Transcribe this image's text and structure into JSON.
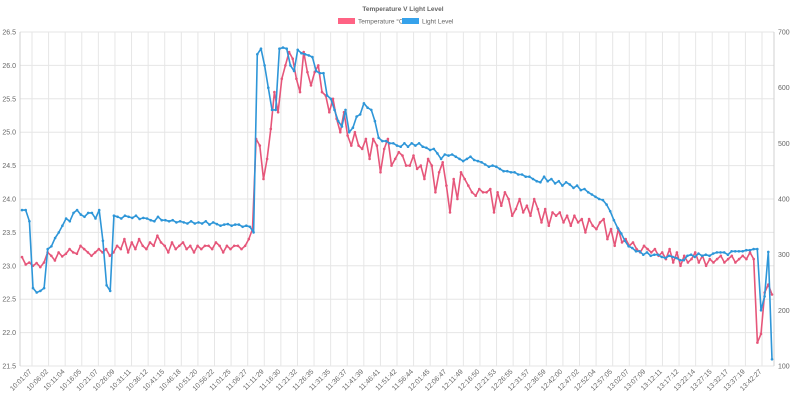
{
  "chart_data": {
    "type": "line",
    "title": "Temperature V Light Level",
    "legend_position": "top",
    "grid": true,
    "left_axis": {
      "ylim": [
        21.5,
        26.5
      ],
      "ticks": [
        "21.5",
        "22.0",
        "22.5",
        "23.0",
        "23.5",
        "24.0",
        "24.5",
        "25.0",
        "25.5",
        "26.0",
        "26.5"
      ]
    },
    "right_axis": {
      "ylim": [
        100,
        700
      ],
      "ticks": [
        "100",
        "200",
        "300",
        "400",
        "500",
        "600",
        "700"
      ]
    },
    "x_tick_labels": [
      "10:01:07",
      "10:06:02",
      "10:11:04",
      "10:16:05",
      "10:21:07",
      "10:26:09",
      "10:31:11",
      "10:36:12",
      "10:41:15",
      "10:46:18",
      "10:51:20",
      "10:56:22",
      "11:01:25",
      "11:06:27",
      "11:11:29",
      "11:16:30",
      "11:21:32",
      "11:26:35",
      "11:31:35",
      "11:36:37",
      "11:41:39",
      "11:46:41",
      "11:51:42",
      "11:56:44",
      "12:01:45",
      "12:06:47",
      "12:11:49",
      "12:16:50",
      "12:21:53",
      "12:26:55",
      "12:31:57",
      "12:36:59",
      "12:42:00",
      "12:47:02",
      "12:52:04",
      "12:57:05",
      "13:02:07",
      "13:07:09",
      "13:12:11",
      "13:17:12",
      "13:22:14",
      "13:27:15",
      "13:32:17",
      "13:37:19",
      "13:42:27"
    ],
    "series": [
      {
        "name": "Temperature °C",
        "axis": "left",
        "color": "#ff6384",
        "stroke": "#e6567a",
        "values": [
          23.13,
          23.02,
          23.05,
          23.0,
          23.04,
          22.98,
          23.05,
          23.2,
          23.15,
          23.08,
          23.2,
          23.14,
          23.18,
          23.25,
          23.2,
          23.18,
          23.3,
          23.25,
          23.2,
          23.15,
          23.2,
          23.25,
          23.2,
          23.25,
          23.15,
          23.2,
          23.3,
          23.25,
          23.4,
          23.2,
          23.35,
          23.25,
          23.4,
          23.3,
          23.25,
          23.35,
          23.3,
          23.45,
          23.35,
          23.3,
          23.2,
          23.35,
          23.25,
          23.3,
          23.35,
          23.25,
          23.3,
          23.2,
          23.3,
          23.25,
          23.3,
          23.3,
          23.25,
          23.35,
          23.3,
          23.2,
          23.3,
          23.25,
          23.3,
          23.3,
          23.25,
          23.3,
          23.4,
          23.55,
          24.9,
          24.8,
          24.3,
          24.6,
          25.05,
          25.6,
          25.3,
          25.8,
          26.0,
          26.2,
          26.1,
          25.8,
          25.6,
          26.2,
          25.9,
          25.7,
          25.9,
          26.0,
          25.6,
          25.55,
          25.3,
          25.5,
          25.2,
          25.0,
          25.3,
          24.95,
          24.8,
          25.0,
          24.8,
          24.75,
          24.9,
          24.6,
          24.9,
          24.8,
          24.4,
          24.75,
          24.9,
          24.5,
          24.6,
          24.7,
          24.65,
          24.5,
          24.5,
          24.65,
          24.45,
          24.5,
          24.3,
          24.6,
          24.5,
          24.1,
          24.4,
          24.55,
          24.2,
          23.8,
          24.3,
          24.0,
          24.4,
          24.3,
          24.2,
          24.1,
          24.05,
          24.15,
          24.1,
          24.1,
          24.15,
          23.8,
          24.1,
          23.9,
          24.1,
          24.0,
          23.75,
          23.85,
          24.0,
          23.8,
          23.9,
          23.75,
          24.0,
          23.85,
          23.65,
          23.85,
          23.6,
          23.8,
          23.75,
          23.8,
          23.65,
          23.75,
          23.6,
          23.75,
          23.65,
          23.7,
          23.5,
          23.7,
          23.6,
          23.55,
          23.65,
          23.7,
          23.4,
          23.55,
          23.3,
          23.55,
          23.35,
          23.4,
          23.3,
          23.35,
          23.25,
          23.2,
          23.3,
          23.25,
          23.2,
          23.25,
          23.15,
          23.2,
          23.1,
          23.25,
          23.05,
          23.2,
          23.0,
          23.15,
          23.05,
          23.1,
          23.2,
          23.05,
          23.15,
          23.0,
          23.1,
          23.05,
          23.1,
          23.15,
          23.05,
          23.1,
          23.15,
          23.05,
          23.1,
          23.15,
          23.1,
          23.2,
          23.1,
          21.85,
          21.98,
          22.6,
          22.72,
          22.57
        ]
      },
      {
        "name": "Light Level",
        "axis": "right",
        "color": "#36a2eb",
        "stroke": "#2e96d8",
        "values": [
          380,
          380,
          360,
          240,
          232,
          235,
          240,
          310,
          315,
          330,
          340,
          352,
          365,
          360,
          375,
          380,
          372,
          368,
          375,
          375,
          365,
          380,
          325,
          245,
          235,
          370,
          368,
          365,
          370,
          368,
          366,
          370,
          364,
          366,
          365,
          362,
          360,
          368,
          362,
          362,
          360,
          362,
          358,
          360,
          358,
          356,
          360,
          356,
          358,
          356,
          360,
          354,
          358,
          355,
          352,
          354,
          355,
          352,
          354,
          354,
          350,
          352,
          350,
          340,
          660,
          670,
          640,
          600,
          560,
          560,
          670,
          672,
          670,
          640,
          630,
          668,
          662,
          660,
          658,
          655,
          630,
          626,
          626,
          586,
          580,
          560,
          540,
          530,
          560,
          520,
          528,
          548,
          552,
          572,
          564,
          560,
          540,
          510,
          504,
          504,
          500,
          500,
          496,
          494,
          500,
          494,
          500,
          496,
          500,
          494,
          492,
          488,
          490,
          482,
          472,
          480,
          478,
          480,
          476,
          472,
          468,
          472,
          476,
          470,
          468,
          466,
          462,
          458,
          460,
          458,
          454,
          450,
          450,
          448,
          448,
          444,
          444,
          440,
          440,
          436,
          432,
          430,
          440,
          432,
          436,
          428,
          432,
          424,
          430,
          426,
          420,
          424,
          416,
          418,
          412,
          408,
          404,
          400,
          398,
          390,
          378,
          362,
          348,
          338,
          325,
          315,
          312,
          306,
          306,
          300,
          304,
          298,
          300,
          300,
          296,
          294,
          298,
          296,
          294,
          290,
          290,
          298,
          300,
          296,
          302,
          298,
          300,
          298,
          302,
          304,
          304,
          304,
          300,
          306,
          306,
          306,
          306,
          308,
          308,
          310,
          310,
          200,
          225,
          305,
          112
        ]
      }
    ]
  }
}
